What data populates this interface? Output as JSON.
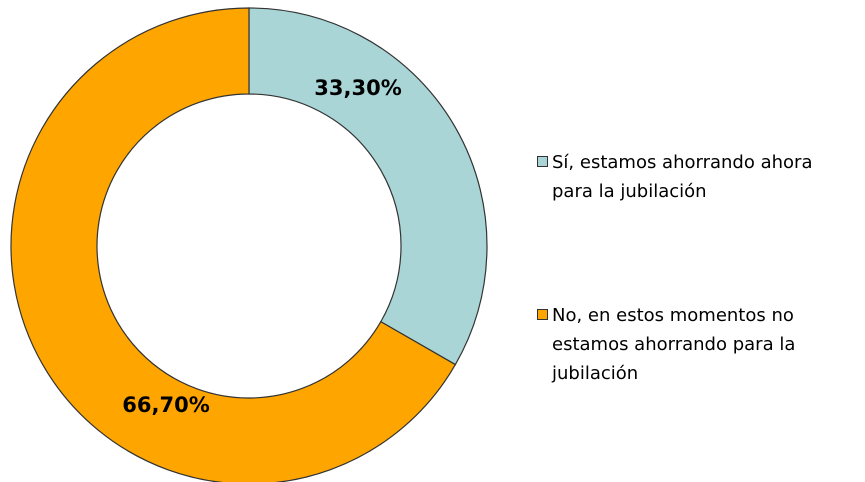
{
  "chart_data": {
    "type": "donut",
    "categories": [
      "Sí, estamos ahorrando ahora para la jubilación",
      "No, en estos momentos no estamos ahorrando para la jubilación"
    ],
    "values": [
      33.3,
      66.7
    ],
    "value_labels": [
      "33,30%",
      "66,70%"
    ],
    "colors": [
      "#a9d5d6",
      "#ffa500"
    ],
    "legend": "right"
  }
}
